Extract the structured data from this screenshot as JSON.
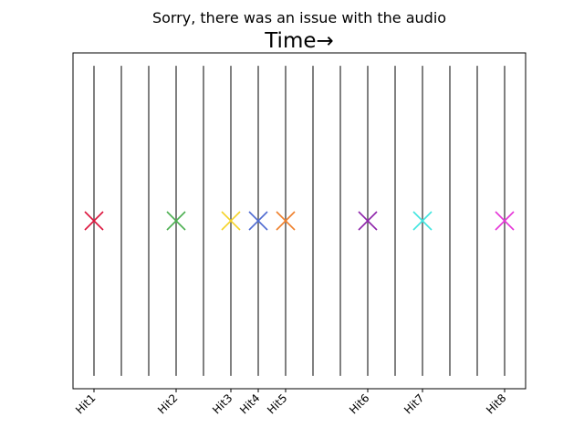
{
  "chart_data": {
    "type": "scatter",
    "subtitle": "Sorry, there was an issue with the audio",
    "title": "Time→",
    "xlabel": "",
    "ylabel": "",
    "xlim": [
      0,
      15
    ],
    "ylim": [
      -1.3,
      1.3
    ],
    "grid": false,
    "beat_lines": [
      0,
      1,
      2,
      3,
      4,
      5,
      6,
      7,
      8,
      9,
      10,
      11,
      12,
      13,
      14,
      15
    ],
    "beat_line_range": [
      -1.2,
      1.2
    ],
    "beat_line_color": "#808080",
    "marker": "x",
    "points": [
      {
        "label": "Hit1",
        "x": 0,
        "y": 0,
        "color": "#dc143c"
      },
      {
        "label": "Hit2",
        "x": 3,
        "y": 0,
        "color": "#4caf50"
      },
      {
        "label": "Hit3",
        "x": 5,
        "y": 0,
        "color": "#f5d327"
      },
      {
        "label": "Hit4",
        "x": 6,
        "y": 0,
        "color": "#4f6bd1"
      },
      {
        "label": "Hit5",
        "x": 7,
        "y": 0,
        "color": "#ef7f2b"
      },
      {
        "label": "Hit6",
        "x": 10,
        "y": 0,
        "color": "#8e24aa"
      },
      {
        "label": "Hit7",
        "x": 12,
        "y": 0,
        "color": "#40e5e0"
      },
      {
        "label": "Hit8",
        "x": 15,
        "y": 0,
        "color": "#e535d8"
      }
    ]
  }
}
